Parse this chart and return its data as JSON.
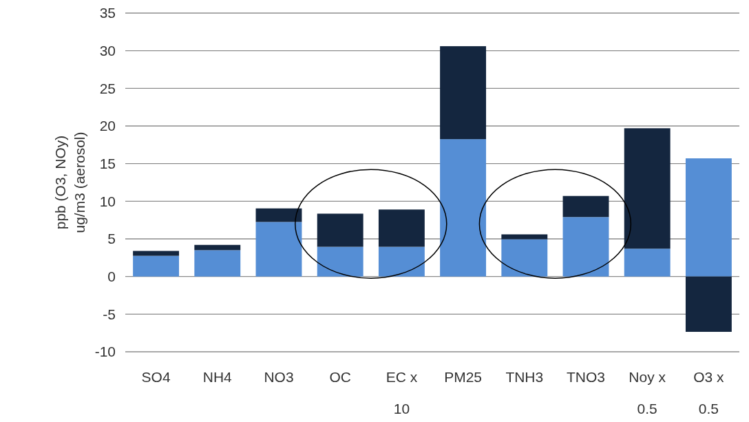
{
  "chart_data": {
    "type": "bar",
    "stacked": true,
    "ylabel": "ppb (O3, NOy)\nug/m3 (aerosol)",
    "categories": [
      "SO4",
      "NH4",
      "NO3",
      "OC",
      "EC x 10",
      "PM25",
      "TNH3",
      "TNO3",
      "Noy x 0.5",
      "O3 x 0.5"
    ],
    "series": [
      {
        "color": "#558ed5",
        "values": [
          2.75,
          3.5,
          7.25,
          3.95,
          3.95,
          18.25,
          4.95,
          7.9,
          3.7,
          15.7
        ]
      },
      {
        "color": "#14263f",
        "values": [
          0.65,
          0.7,
          1.8,
          4.4,
          4.95,
          12.35,
          0.65,
          2.8,
          16.0,
          -7.35
        ]
      }
    ],
    "ylim": [
      -10,
      35
    ],
    "yticks": [
      -10,
      -5,
      0,
      5,
      10,
      15,
      20,
      25,
      30,
      35
    ],
    "grid": "y"
  }
}
